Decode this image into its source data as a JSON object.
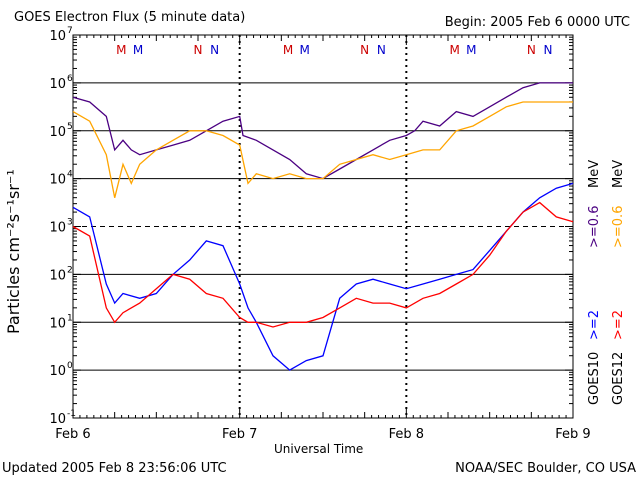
{
  "header": {
    "title": "GOES Electron Flux (5 minute data)",
    "begin": "Begin: 2005 Feb 6 0000 UTC"
  },
  "footer": {
    "updated": "Updated 2005 Feb  8 23:56:06 UTC",
    "credit": "NOAA/SEC Boulder, CO USA"
  },
  "colors": {
    "goes10_high": "#0000ff",
    "goes10_low": "#4b0082",
    "goes12_high": "#ff0000",
    "goes12_low": "#ffa500",
    "marker_M": "#cc0000",
    "marker_N": "#0000cc"
  },
  "legend": {
    "goes10_label": "GOES10",
    "goes12_label": "GOES12",
    "goes10_high": ">=2",
    "goes10_low": ">=0.6",
    "goes10_unit": "MeV",
    "goes12_high": ">=2",
    "goes12_low": ">=0.6",
    "goes12_unit": "MeV"
  },
  "chart_data": {
    "type": "line",
    "title": "GOES Electron Flux (5 minute data)",
    "xlabel": "Universal Time",
    "ylabel": "Particles cm⁻²s⁻¹sr⁻¹",
    "yscale": "log",
    "ylim_exp": [
      -1,
      7
    ],
    "ytick_labels": [
      {
        "exp": -1,
        "label": "10",
        "sup": "-1"
      },
      {
        "exp": 0,
        "label": "10",
        "sup": "0"
      },
      {
        "exp": 1,
        "label": "10",
        "sup": "1"
      },
      {
        "exp": 2,
        "label": "10",
        "sup": "2"
      },
      {
        "exp": 3,
        "label": "10",
        "sup": "3"
      },
      {
        "exp": 4,
        "label": "10",
        "sup": "4"
      },
      {
        "exp": 5,
        "label": "10",
        "sup": "5"
      },
      {
        "exp": 6,
        "label": "10",
        "sup": "6"
      },
      {
        "exp": 7,
        "label": "10",
        "sup": "7"
      }
    ],
    "xlim_days": [
      0,
      3
    ],
    "xtick_labels": [
      "Feb 6",
      "Feb 7",
      "Feb 8",
      "Feb 9"
    ],
    "hlines_solid_exp": [
      0,
      1,
      2,
      4,
      5,
      6
    ],
    "hlines_dashed_exp": [
      3
    ],
    "day_boundaries": [
      1,
      2
    ],
    "markers": [
      {
        "t": 0.29,
        "label": "M",
        "color": "#cc0000"
      },
      {
        "t": 0.39,
        "label": "M",
        "color": "#0000cc"
      },
      {
        "t": 0.75,
        "label": "N",
        "color": "#cc0000"
      },
      {
        "t": 0.85,
        "label": "N",
        "color": "#0000cc"
      },
      {
        "t": 1.29,
        "label": "M",
        "color": "#cc0000"
      },
      {
        "t": 1.39,
        "label": "M",
        "color": "#0000cc"
      },
      {
        "t": 1.75,
        "label": "N",
        "color": "#cc0000"
      },
      {
        "t": 1.85,
        "label": "N",
        "color": "#0000cc"
      },
      {
        "t": 2.29,
        "label": "M",
        "color": "#cc0000"
      },
      {
        "t": 2.39,
        "label": "M",
        "color": "#0000cc"
      },
      {
        "t": 2.75,
        "label": "N",
        "color": "#cc0000"
      },
      {
        "t": 2.85,
        "label": "N",
        "color": "#0000cc"
      }
    ],
    "series": [
      {
        "name": "GOES10 >=0.6 MeV",
        "color": "#4b0082",
        "points": [
          [
            0.0,
            5.7
          ],
          [
            0.1,
            5.6
          ],
          [
            0.2,
            5.3
          ],
          [
            0.25,
            4.6
          ],
          [
            0.3,
            4.8
          ],
          [
            0.35,
            4.6
          ],
          [
            0.4,
            4.5
          ],
          [
            0.5,
            4.6
          ],
          [
            0.6,
            4.7
          ],
          [
            0.7,
            4.8
          ],
          [
            0.8,
            5.0
          ],
          [
            0.9,
            5.2
          ],
          [
            1.0,
            5.3
          ],
          [
            1.02,
            4.9
          ],
          [
            1.1,
            4.8
          ],
          [
            1.2,
            4.6
          ],
          [
            1.3,
            4.4
          ],
          [
            1.4,
            4.1
          ],
          [
            1.5,
            4.0
          ],
          [
            1.6,
            4.2
          ],
          [
            1.7,
            4.4
          ],
          [
            1.8,
            4.6
          ],
          [
            1.9,
            4.8
          ],
          [
            2.0,
            4.9
          ],
          [
            2.05,
            5.0
          ],
          [
            2.1,
            5.2
          ],
          [
            2.2,
            5.1
          ],
          [
            2.3,
            5.4
          ],
          [
            2.4,
            5.3
          ],
          [
            2.5,
            5.5
          ],
          [
            2.6,
            5.7
          ],
          [
            2.7,
            5.9
          ],
          [
            2.8,
            6.0
          ],
          [
            2.9,
            6.0
          ],
          [
            3.0,
            6.0
          ]
        ]
      },
      {
        "name": "GOES12 >=0.6 MeV",
        "color": "#ffa500",
        "points": [
          [
            0.0,
            5.4
          ],
          [
            0.1,
            5.2
          ],
          [
            0.2,
            4.5
          ],
          [
            0.25,
            3.6
          ],
          [
            0.3,
            4.3
          ],
          [
            0.35,
            3.9
          ],
          [
            0.4,
            4.3
          ],
          [
            0.5,
            4.6
          ],
          [
            0.6,
            4.8
          ],
          [
            0.7,
            5.0
          ],
          [
            0.8,
            5.0
          ],
          [
            0.9,
            4.9
          ],
          [
            1.0,
            4.7
          ],
          [
            1.05,
            3.9
          ],
          [
            1.1,
            4.1
          ],
          [
            1.2,
            4.0
          ],
          [
            1.3,
            4.1
          ],
          [
            1.4,
            4.0
          ],
          [
            1.5,
            4.0
          ],
          [
            1.6,
            4.3
          ],
          [
            1.7,
            4.4
          ],
          [
            1.8,
            4.5
          ],
          [
            1.9,
            4.4
          ],
          [
            2.0,
            4.5
          ],
          [
            2.1,
            4.6
          ],
          [
            2.2,
            4.6
          ],
          [
            2.3,
            5.0
          ],
          [
            2.4,
            5.1
          ],
          [
            2.5,
            5.3
          ],
          [
            2.6,
            5.5
          ],
          [
            2.7,
            5.6
          ],
          [
            2.8,
            5.6
          ],
          [
            2.9,
            5.6
          ],
          [
            3.0,
            5.6
          ]
        ]
      },
      {
        "name": "GOES10 >=2 MeV",
        "color": "#0000ff",
        "points": [
          [
            0.0,
            3.4
          ],
          [
            0.1,
            3.2
          ],
          [
            0.2,
            1.8
          ],
          [
            0.25,
            1.4
          ],
          [
            0.3,
            1.6
          ],
          [
            0.4,
            1.5
          ],
          [
            0.5,
            1.6
          ],
          [
            0.6,
            2.0
          ],
          [
            0.7,
            2.3
          ],
          [
            0.8,
            2.7
          ],
          [
            0.9,
            2.6
          ],
          [
            1.0,
            1.8
          ],
          [
            1.05,
            1.3
          ],
          [
            1.1,
            1.0
          ],
          [
            1.2,
            0.3
          ],
          [
            1.3,
            0.0
          ],
          [
            1.4,
            0.2
          ],
          [
            1.5,
            0.3
          ],
          [
            1.6,
            1.5
          ],
          [
            1.7,
            1.8
          ],
          [
            1.8,
            1.9
          ],
          [
            1.9,
            1.8
          ],
          [
            2.0,
            1.7
          ],
          [
            2.1,
            1.8
          ],
          [
            2.2,
            1.9
          ],
          [
            2.3,
            2.0
          ],
          [
            2.4,
            2.1
          ],
          [
            2.5,
            2.5
          ],
          [
            2.6,
            2.9
          ],
          [
            2.7,
            3.3
          ],
          [
            2.8,
            3.6
          ],
          [
            2.9,
            3.8
          ],
          [
            3.0,
            3.9
          ]
        ]
      },
      {
        "name": "GOES12 >=2 MeV",
        "color": "#ff0000",
        "points": [
          [
            0.0,
            3.0
          ],
          [
            0.1,
            2.8
          ],
          [
            0.2,
            1.3
          ],
          [
            0.25,
            1.0
          ],
          [
            0.3,
            1.2
          ],
          [
            0.4,
            1.4
          ],
          [
            0.5,
            1.7
          ],
          [
            0.6,
            2.0
          ],
          [
            0.7,
            1.9
          ],
          [
            0.8,
            1.6
          ],
          [
            0.9,
            1.5
          ],
          [
            1.0,
            1.1
          ],
          [
            1.05,
            1.0
          ],
          [
            1.1,
            1.0
          ],
          [
            1.2,
            0.9
          ],
          [
            1.3,
            1.0
          ],
          [
            1.4,
            1.0
          ],
          [
            1.5,
            1.1
          ],
          [
            1.6,
            1.3
          ],
          [
            1.7,
            1.5
          ],
          [
            1.8,
            1.4
          ],
          [
            1.9,
            1.4
          ],
          [
            2.0,
            1.3
          ],
          [
            2.1,
            1.5
          ],
          [
            2.2,
            1.6
          ],
          [
            2.3,
            1.8
          ],
          [
            2.4,
            2.0
          ],
          [
            2.5,
            2.4
          ],
          [
            2.6,
            2.9
          ],
          [
            2.7,
            3.3
          ],
          [
            2.8,
            3.5
          ],
          [
            2.9,
            3.2
          ],
          [
            3.0,
            3.1
          ]
        ]
      }
    ]
  }
}
